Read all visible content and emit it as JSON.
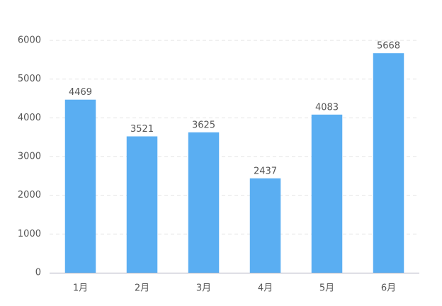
{
  "chart_data": {
    "type": "bar",
    "categories": [
      "1月",
      "2月",
      "3月",
      "4月",
      "5月",
      "6月"
    ],
    "values": [
      4469,
      3521,
      3625,
      2437,
      4083,
      5668
    ],
    "color": "#5aaef2",
    "ylim": [
      0,
      6000
    ],
    "yticks": [
      0,
      1000,
      2000,
      3000,
      4000,
      5000,
      6000
    ],
    "grid": true
  }
}
